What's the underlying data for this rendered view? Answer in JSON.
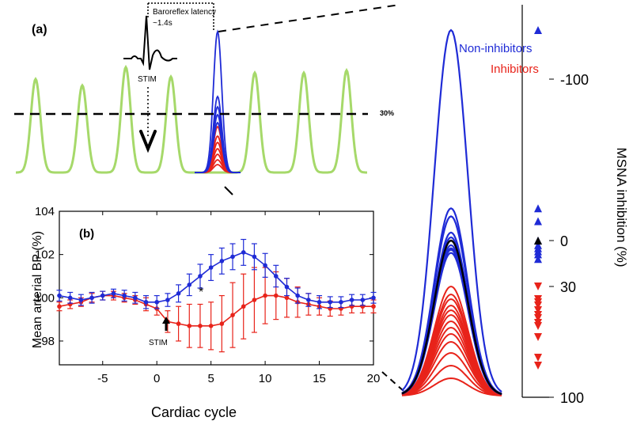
{
  "panel_a": {
    "label": "(a)",
    "latency_text_1": "Baroreflex latency",
    "latency_text_2": "~1.4s",
    "stim_label": "STIM",
    "threshold_label": "30%",
    "legend": [
      {
        "label": "Non-inhibitors",
        "color": "#1f2bd6"
      },
      {
        "label": "Inhibitors",
        "color": "#e8231a"
      }
    ]
  },
  "panel_b": {
    "label": "(b)",
    "stim_label": "STIM",
    "asterisk": "*"
  },
  "colors": {
    "pulse": "#a6d96a",
    "non_inhibitor": "#1f2bd6",
    "inhibitor": "#e8231a",
    "reference": "#000000"
  },
  "chart_data": [
    {
      "type": "line",
      "panel": "b",
      "xlabel": "Cardiac cycle",
      "ylabel": "Mean arterial BP (%)",
      "xlim": [
        -9,
        20
      ],
      "ylim": [
        96.9,
        104
      ],
      "xticks": [
        -5,
        0,
        5,
        10,
        15,
        20
      ],
      "yticks": [
        98,
        100,
        102,
        104
      ],
      "x": [
        -9,
        -8,
        -7,
        -6,
        -5,
        -4,
        -3,
        -2,
        -1,
        0,
        1,
        2,
        3,
        4,
        5,
        6,
        7,
        8,
        9,
        10,
        11,
        12,
        13,
        14,
        15,
        16,
        17,
        18,
        19,
        20
      ],
      "series": [
        {
          "color": "#1f2bd6",
          "values": [
            100.1,
            100.0,
            99.9,
            100.0,
            100.1,
            100.2,
            100.1,
            100.0,
            99.8,
            99.8,
            99.9,
            100.2,
            100.6,
            101.0,
            101.4,
            101.7,
            101.9,
            102.1,
            101.9,
            101.5,
            101.0,
            100.5,
            100.1,
            99.9,
            99.8,
            99.8,
            99.8,
            99.9,
            99.9,
            100.0
          ],
          "err": [
            0.25,
            0.25,
            0.25,
            0.25,
            0.2,
            0.2,
            0.25,
            0.25,
            0.3,
            0.3,
            0.3,
            0.4,
            0.5,
            0.55,
            0.6,
            0.6,
            0.6,
            0.6,
            0.6,
            0.55,
            0.5,
            0.4,
            0.35,
            0.3,
            0.3,
            0.25,
            0.25,
            0.25,
            0.25,
            0.25
          ]
        },
        {
          "color": "#e8231a",
          "values": [
            99.6,
            99.7,
            99.8,
            100.0,
            100.1,
            100.1,
            100.0,
            99.9,
            99.7,
            99.5,
            98.9,
            98.8,
            98.7,
            98.7,
            98.7,
            98.8,
            99.2,
            99.6,
            99.9,
            100.1,
            100.1,
            100.0,
            99.8,
            99.7,
            99.6,
            99.5,
            99.5,
            99.6,
            99.6,
            99.6
          ],
          "err": [
            0.2,
            0.2,
            0.2,
            0.2,
            0.2,
            0.2,
            0.2,
            0.2,
            0.3,
            0.3,
            0.5,
            0.8,
            1.0,
            1.0,
            1.1,
            1.3,
            1.5,
            1.5,
            1.5,
            1.3,
            1.1,
            0.9,
            0.7,
            0.5,
            0.4,
            0.35,
            0.3,
            0.3,
            0.3,
            0.3
          ]
        }
      ]
    },
    {
      "type": "area",
      "panel": "c",
      "ylabel": "MSNA inhibition (%)",
      "yticks": [
        {
          "label": "-100",
          "value": -100
        },
        {
          "label": "0",
          "value": 0
        },
        {
          "label": "30",
          "value": 30
        },
        {
          "label": "100",
          "value": 100
        }
      ],
      "non_inhibitor_peaks": [
        -129,
        -20,
        -15,
        -5,
        -2,
        3,
        5,
        6,
        8
      ],
      "reference_peak": 0,
      "inhibitor_peaks": [
        30,
        35,
        38,
        42,
        45,
        48,
        52,
        56,
        60,
        65,
        72,
        80,
        88
      ],
      "non_inhibitor_markers": [
        -129,
        -20,
        -12,
        0,
        3,
        5,
        7,
        9,
        12
      ],
      "reference_marker": 0,
      "inhibitor_markers": [
        30,
        38,
        40,
        42,
        45,
        48,
        50,
        53,
        55,
        62,
        75,
        80
      ]
    }
  ]
}
